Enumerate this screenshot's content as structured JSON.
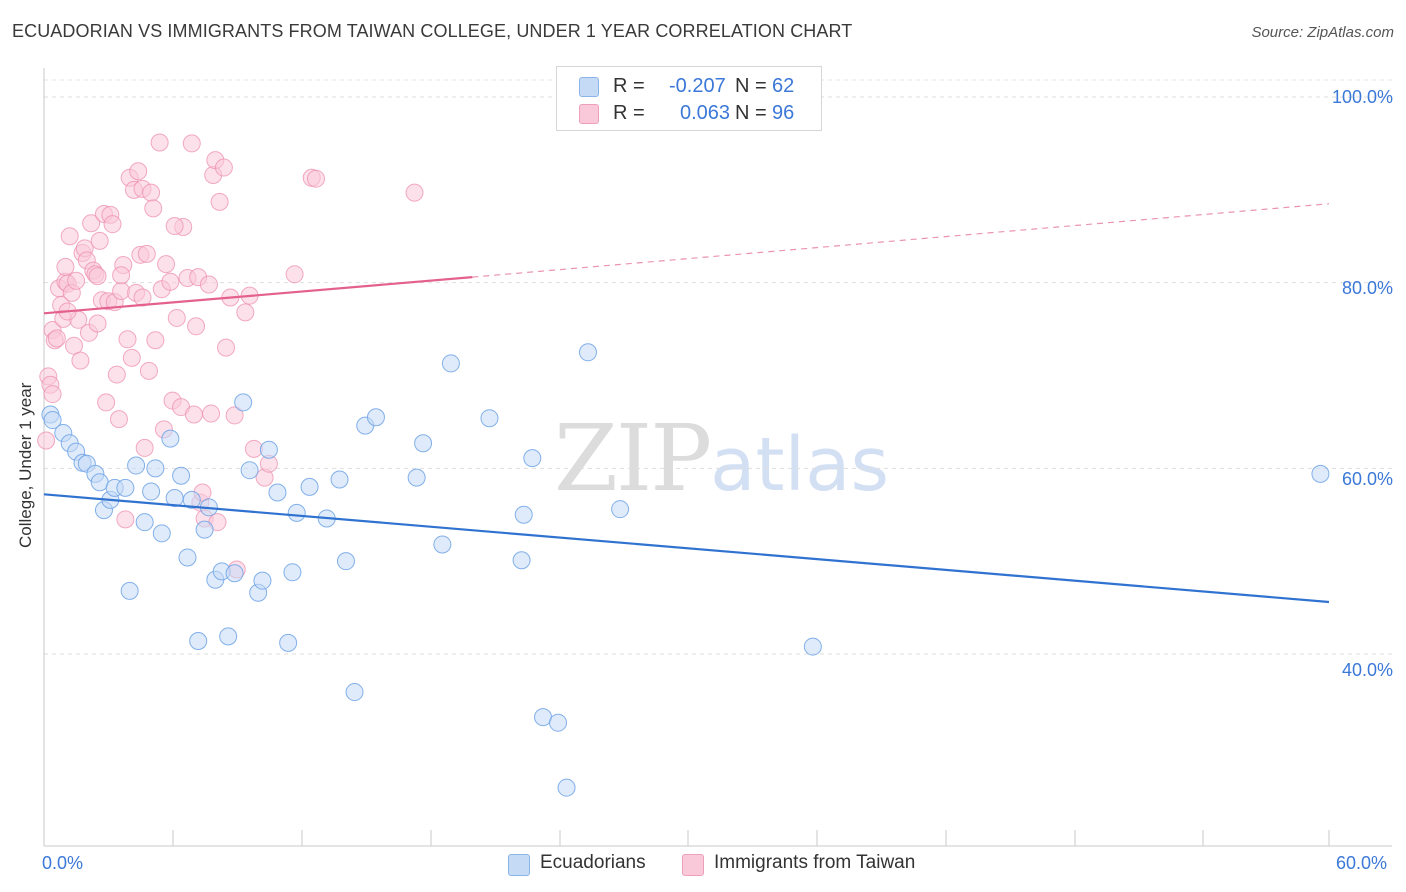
{
  "header": {
    "title": "ECUADORIAN VS IMMIGRANTS FROM TAIWAN COLLEGE, UNDER 1 YEAR CORRELATION CHART",
    "source": "Source: ZipAtlas.com"
  },
  "watermark": {
    "zip": "ZIP",
    "atlas": "atlas"
  },
  "legend": {
    "rows": [
      {
        "r_label": "R =",
        "r_value": "-0.207",
        "n_label": "N =",
        "n_value": "62",
        "color": "#a9c8f0"
      },
      {
        "r_label": "R =",
        "r_value": "0.063",
        "n_label": "N =",
        "n_value": "96",
        "color": "#f7b9cd"
      }
    ]
  },
  "bottom_legend": [
    {
      "label": "Ecuadorians",
      "color": "#a9c8f0"
    },
    {
      "label": "Immigrants from Taiwan",
      "color": "#f7b9cd"
    }
  ],
  "axes": {
    "y_label": "College, Under 1 year",
    "x_min_label": "0.0%",
    "x_max_label": "60.0%",
    "y_ticks": [
      "100.0%",
      "80.0%",
      "60.0%",
      "40.0%"
    ]
  },
  "chart_data": {
    "type": "scatter",
    "title": "ECUADORIAN VS IMMIGRANTS FROM TAIWAN COLLEGE, UNDER 1 YEAR CORRELATION CHART",
    "xlabel": "",
    "ylabel": "College, Under 1 year",
    "xlim": [
      0,
      60
    ],
    "ylim": [
      22,
      101
    ],
    "y_ticks": [
      40,
      60,
      80,
      100
    ],
    "grid": true,
    "legend_position": "top-center",
    "series": [
      {
        "name": "Ecuadorians",
        "color": "#6fa3e6",
        "fill": "#c5daf5",
        "r": -0.207,
        "n": 62,
        "trend": {
          "x": [
            0,
            60
          ],
          "y": [
            57.2,
            45.6
          ],
          "style": "solid"
        },
        "points": [
          [
            0.3,
            65.8
          ],
          [
            0.4,
            65.2
          ],
          [
            0.9,
            63.8
          ],
          [
            1.2,
            62.7
          ],
          [
            1.5,
            61.8
          ],
          [
            1.8,
            60.6
          ],
          [
            2.0,
            60.5
          ],
          [
            2.4,
            59.4
          ],
          [
            2.6,
            58.5
          ],
          [
            2.8,
            55.5
          ],
          [
            3.1,
            56.6
          ],
          [
            3.3,
            57.9
          ],
          [
            3.8,
            57.9
          ],
          [
            4.0,
            46.8
          ],
          [
            4.3,
            60.3
          ],
          [
            4.7,
            54.2
          ],
          [
            5.0,
            57.5
          ],
          [
            5.2,
            60.0
          ],
          [
            5.5,
            53.0
          ],
          [
            5.9,
            63.2
          ],
          [
            6.1,
            56.8
          ],
          [
            6.4,
            59.2
          ],
          [
            6.7,
            50.4
          ],
          [
            6.9,
            56.6
          ],
          [
            7.2,
            41.4
          ],
          [
            7.5,
            53.4
          ],
          [
            7.7,
            55.8
          ],
          [
            8.0,
            48.0
          ],
          [
            8.3,
            48.9
          ],
          [
            8.6,
            41.9
          ],
          [
            8.9,
            48.7
          ],
          [
            9.3,
            67.1
          ],
          [
            9.6,
            59.8
          ],
          [
            10.0,
            46.6
          ],
          [
            10.2,
            47.9
          ],
          [
            10.5,
            62.0
          ],
          [
            10.9,
            57.4
          ],
          [
            11.4,
            41.2
          ],
          [
            11.6,
            48.8
          ],
          [
            11.8,
            55.2
          ],
          [
            12.4,
            58.0
          ],
          [
            13.2,
            54.6
          ],
          [
            13.8,
            58.8
          ],
          [
            14.1,
            50.0
          ],
          [
            14.5,
            35.9
          ],
          [
            15.0,
            64.6
          ],
          [
            15.5,
            65.5
          ],
          [
            17.4,
            59.0
          ],
          [
            17.7,
            62.7
          ],
          [
            18.6,
            51.8
          ],
          [
            19.0,
            71.3
          ],
          [
            20.8,
            65.4
          ],
          [
            22.3,
            50.1
          ],
          [
            22.4,
            55.0
          ],
          [
            22.8,
            61.1
          ],
          [
            23.3,
            33.2
          ],
          [
            24.0,
            32.6
          ],
          [
            24.4,
            25.6
          ],
          [
            25.4,
            72.5
          ],
          [
            26.9,
            55.6
          ],
          [
            35.9,
            40.8
          ],
          [
            59.6,
            59.4
          ]
        ]
      },
      {
        "name": "Immigrants from Taiwan",
        "color": "#ee8fb0",
        "fill": "#f9c9d9",
        "r": 0.063,
        "n": 96,
        "trend": {
          "x": [
            0,
            20
          ],
          "y": [
            76.7,
            80.6
          ],
          "style": "solid",
          "extended_to": [
            60,
            88.5
          ],
          "extended_style": "dashed"
        },
        "points": [
          [
            0.1,
            63.0
          ],
          [
            0.2,
            69.9
          ],
          [
            0.3,
            69.0
          ],
          [
            0.4,
            68.0
          ],
          [
            0.4,
            74.9
          ],
          [
            0.5,
            73.8
          ],
          [
            0.6,
            74.0
          ],
          [
            0.7,
            79.4
          ],
          [
            0.8,
            77.6
          ],
          [
            0.9,
            76.1
          ],
          [
            1.0,
            80.1
          ],
          [
            1.0,
            81.7
          ],
          [
            1.1,
            79.9
          ],
          [
            1.2,
            85.0
          ],
          [
            1.3,
            78.9
          ],
          [
            1.4,
            73.2
          ],
          [
            1.5,
            80.2
          ],
          [
            1.6,
            76.0
          ],
          [
            1.7,
            71.6
          ],
          [
            1.8,
            83.2
          ],
          [
            1.9,
            83.7
          ],
          [
            2.0,
            82.4
          ],
          [
            2.1,
            74.6
          ],
          [
            2.2,
            86.4
          ],
          [
            2.3,
            81.3
          ],
          [
            2.4,
            80.9
          ],
          [
            2.5,
            80.7
          ],
          [
            2.6,
            84.5
          ],
          [
            2.7,
            78.1
          ],
          [
            2.8,
            87.4
          ],
          [
            2.9,
            67.1
          ],
          [
            3.0,
            78.0
          ],
          [
            3.1,
            87.3
          ],
          [
            3.2,
            86.3
          ],
          [
            3.3,
            77.9
          ],
          [
            3.4,
            70.1
          ],
          [
            3.5,
            65.3
          ],
          [
            3.6,
            79.1
          ],
          [
            3.7,
            81.9
          ],
          [
            3.8,
            54.5
          ],
          [
            3.9,
            73.9
          ],
          [
            4.0,
            91.3
          ],
          [
            4.1,
            71.9
          ],
          [
            4.2,
            90.0
          ],
          [
            4.3,
            78.9
          ],
          [
            4.4,
            92.0
          ],
          [
            4.5,
            83.0
          ],
          [
            4.6,
            90.1
          ],
          [
            4.7,
            62.2
          ],
          [
            4.8,
            83.1
          ],
          [
            4.9,
            70.5
          ],
          [
            5.0,
            89.7
          ],
          [
            5.1,
            88.0
          ],
          [
            5.2,
            73.8
          ],
          [
            5.4,
            95.1
          ],
          [
            5.5,
            79.3
          ],
          [
            5.7,
            82.0
          ],
          [
            5.9,
            80.1
          ],
          [
            6.0,
            67.3
          ],
          [
            6.2,
            76.2
          ],
          [
            6.4,
            66.6
          ],
          [
            6.5,
            86.0
          ],
          [
            6.7,
            80.5
          ],
          [
            6.9,
            95.0
          ],
          [
            7.0,
            65.8
          ],
          [
            7.2,
            80.6
          ],
          [
            7.3,
            56.3
          ],
          [
            7.4,
            57.4
          ],
          [
            7.5,
            54.6
          ],
          [
            7.7,
            79.8
          ],
          [
            7.8,
            65.9
          ],
          [
            7.9,
            91.6
          ],
          [
            8.0,
            93.2
          ],
          [
            8.1,
            54.2
          ],
          [
            8.2,
            88.7
          ],
          [
            8.4,
            92.4
          ],
          [
            8.5,
            73.0
          ],
          [
            8.7,
            78.4
          ],
          [
            8.9,
            65.7
          ],
          [
            9.0,
            49.1
          ],
          [
            9.4,
            76.8
          ],
          [
            9.6,
            78.6
          ],
          [
            9.8,
            62.1
          ],
          [
            10.3,
            59.0
          ],
          [
            10.5,
            60.5
          ],
          [
            11.7,
            80.9
          ],
          [
            12.5,
            91.3
          ],
          [
            12.7,
            91.2
          ],
          [
            17.3,
            89.7
          ],
          [
            6.1,
            86.1
          ],
          [
            2.5,
            75.6
          ],
          [
            5.6,
            64.2
          ],
          [
            7.1,
            75.3
          ],
          [
            3.6,
            80.8
          ],
          [
            4.6,
            78.4
          ],
          [
            1.1,
            76.9
          ]
        ]
      }
    ]
  }
}
